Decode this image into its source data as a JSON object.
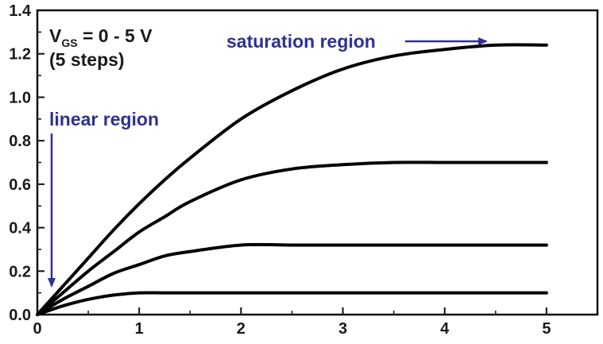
{
  "chart_data": {
    "type": "line",
    "title": "",
    "xlabel": "",
    "ylabel": "",
    "xlim": [
      0,
      5.5
    ],
    "ylim": [
      0,
      1.4
    ],
    "x_ticks": [
      "0",
      "1",
      "2",
      "3",
      "4",
      "5"
    ],
    "y_ticks": [
      "0.0",
      "0.2",
      "0.4",
      "0.6",
      "0.8",
      "1.0",
      "1.2",
      "1.4"
    ],
    "grid": false,
    "legend": "none",
    "series": [
      {
        "x": [
          0,
          0.25,
          0.5,
          0.75,
          1.0,
          1.25,
          1.5,
          2.0,
          2.5,
          3.0,
          3.5,
          4.0,
          4.5,
          5.0
        ],
        "values": [
          0,
          0.04,
          0.07,
          0.09,
          0.1,
          0.1,
          0.1,
          0.1,
          0.1,
          0.1,
          0.1,
          0.1,
          0.1,
          0.1
        ]
      },
      {
        "x": [
          0,
          0.25,
          0.5,
          0.75,
          1.0,
          1.25,
          1.5,
          2.0,
          2.5,
          3.0,
          3.5,
          4.0,
          4.5,
          5.0
        ],
        "values": [
          0,
          0.07,
          0.13,
          0.19,
          0.23,
          0.27,
          0.29,
          0.32,
          0.32,
          0.32,
          0.32,
          0.32,
          0.32,
          0.32
        ]
      },
      {
        "x": [
          0,
          0.25,
          0.5,
          0.75,
          1.0,
          1.25,
          1.5,
          2.0,
          2.5,
          3.0,
          3.5,
          4.0,
          4.5,
          5.0
        ],
        "values": [
          0,
          0.1,
          0.2,
          0.29,
          0.38,
          0.45,
          0.52,
          0.62,
          0.67,
          0.69,
          0.7,
          0.7,
          0.7,
          0.7
        ]
      },
      {
        "x": [
          0,
          0.25,
          0.5,
          0.75,
          1.0,
          1.25,
          1.5,
          2.0,
          2.5,
          3.0,
          3.5,
          4.0,
          4.5,
          5.0
        ],
        "values": [
          0,
          0.13,
          0.26,
          0.39,
          0.51,
          0.62,
          0.72,
          0.9,
          1.03,
          1.13,
          1.19,
          1.22,
          1.24,
          1.24
        ]
      }
    ],
    "series_color": "#000000",
    "annotations": {
      "vgs_label_main": "V",
      "vgs_label_sub": "GS",
      "vgs_label_rest": " = 0 - 5 V",
      "steps_label": "(5 steps)",
      "linear_region": "linear region",
      "saturation_region": "saturation region",
      "annotation_color": "#2e3192"
    }
  }
}
